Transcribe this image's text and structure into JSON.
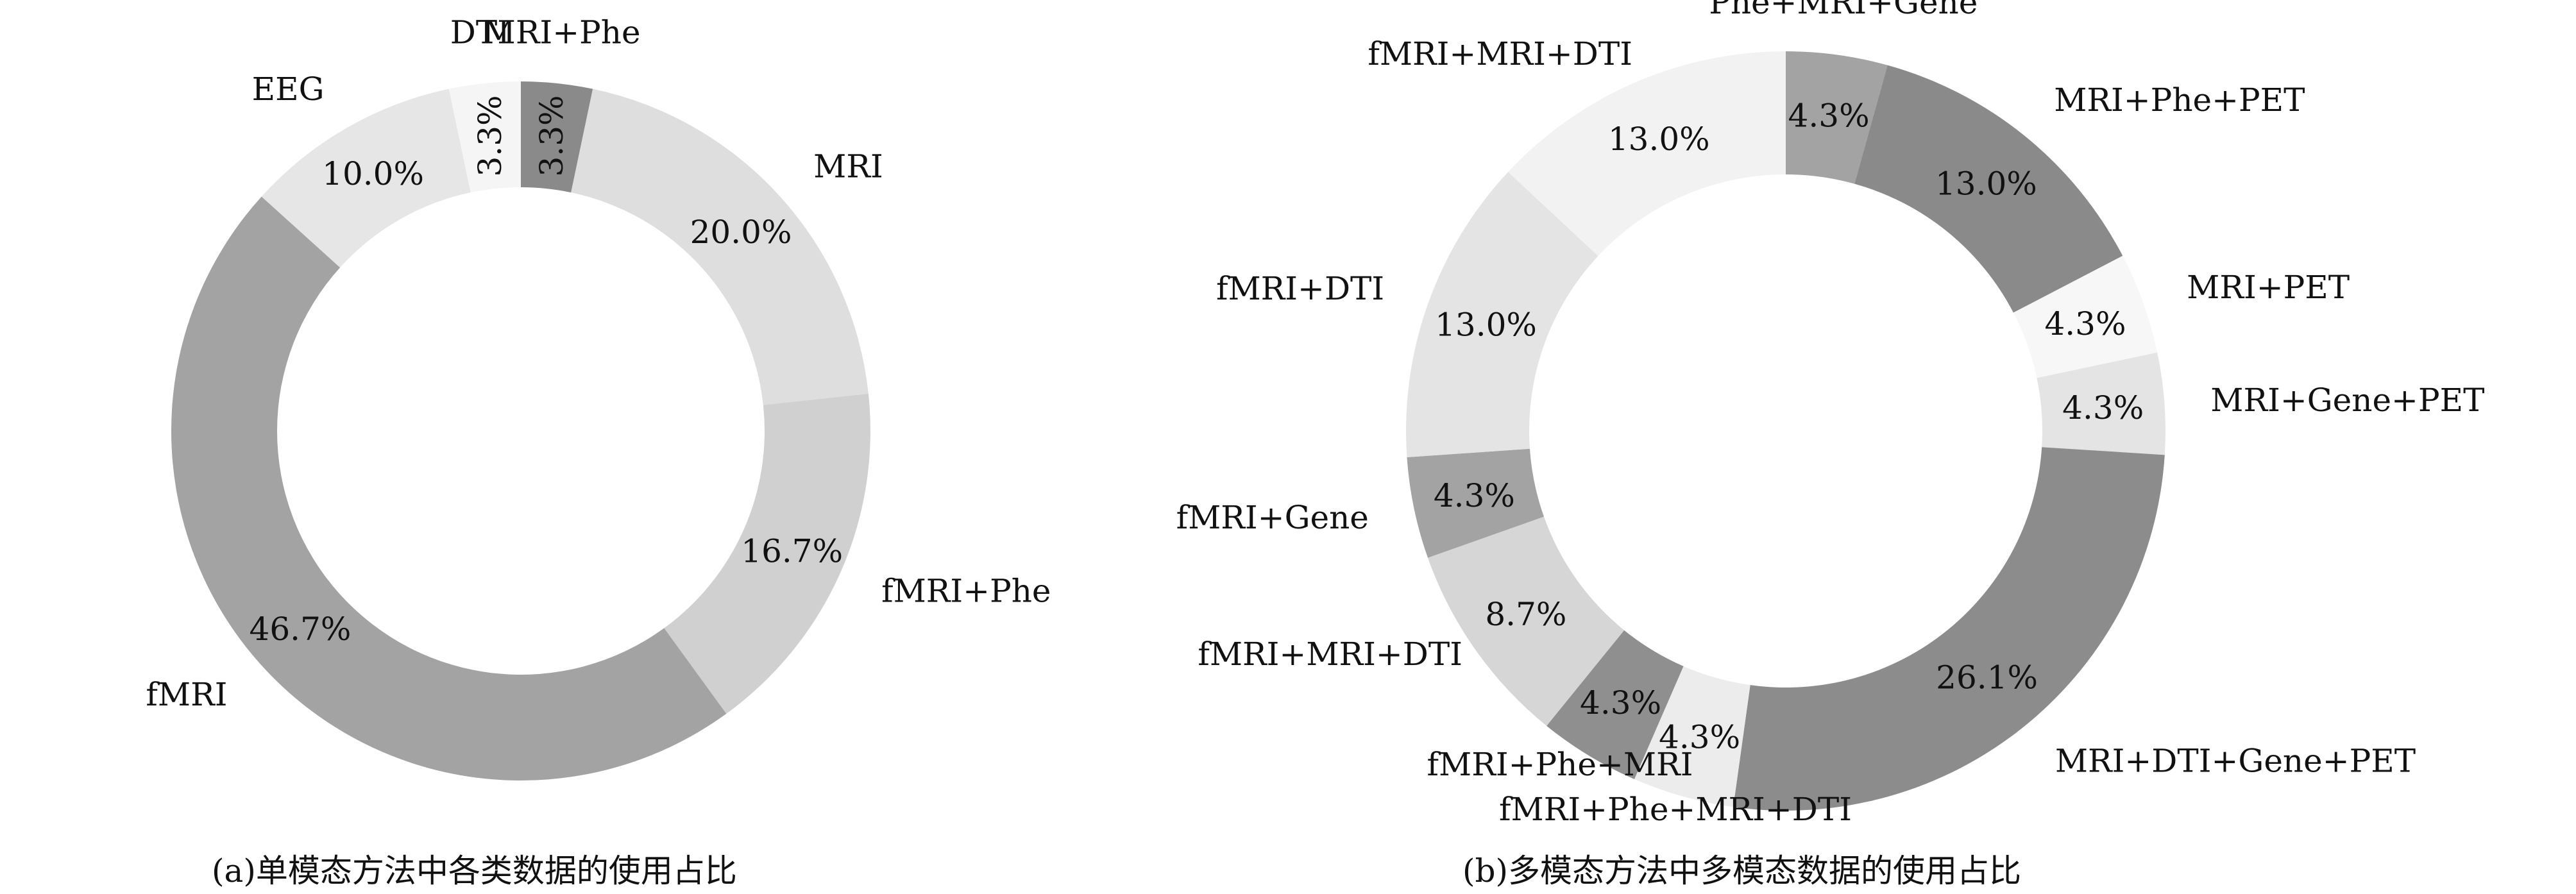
{
  "chart_data": [
    {
      "type": "pie",
      "caption": "(a)单模态方法中各类数据的使用占比",
      "slices": [
        {
          "label": "MRI+Phe",
          "value": 3.3,
          "pct": "3.3%",
          "color": "#8a8a8a"
        },
        {
          "label": "MRI",
          "value": 20.0,
          "pct": "20.0%",
          "color": "#dedede"
        },
        {
          "label": "fMRI+Phe",
          "value": 16.7,
          "pct": "16.7%",
          "color": "#d0d0d0"
        },
        {
          "label": "fMRI",
          "value": 46.7,
          "pct": "46.7%",
          "color": "#a3a3a3"
        },
        {
          "label": "EEG",
          "value": 10.0,
          "pct": "10.0%",
          "color": "#e6e6e6"
        },
        {
          "label": "DTI",
          "value": 3.3,
          "pct": "3.3%",
          "color": "#f5f5f5"
        }
      ]
    },
    {
      "type": "pie",
      "caption": "(b)多模态方法中多模态数据的使用占比",
      "slices": [
        {
          "label": "Phe+MRI+Gene",
          "value": 4.3,
          "pct": "4.3%",
          "color": "#a3a3a3"
        },
        {
          "label": "MRI+Phe+PET",
          "value": 13.0,
          "pct": "13.0%",
          "color": "#8a8a8a"
        },
        {
          "label": "MRI+PET",
          "value": 4.3,
          "pct": "4.3%",
          "color": "#f7f7f7"
        },
        {
          "label": "MRI+Gene+PET",
          "value": 4.3,
          "pct": "4.3%",
          "color": "#e4e4e4"
        },
        {
          "label": "MRI+DTI+Gene+PET",
          "value": 26.1,
          "pct": "26.1%",
          "color": "#8c8c8c"
        },
        {
          "label": "fMRI+Phe+MRI+DTI",
          "value": 4.3,
          "pct": "4.3%",
          "color": "#ececec"
        },
        {
          "label": "fMRI+Phe+MRI",
          "value": 4.3,
          "pct": "4.3%",
          "color": "#8f8f8f"
        },
        {
          "label": "fMRI+MRI+DTI",
          "value": 8.7,
          "pct": "8.7%",
          "color": "#d6d6d6"
        },
        {
          "label": "fMRI+Gene",
          "value": 4.3,
          "pct": "4.3%",
          "color": "#a3a3a3"
        },
        {
          "label": "fMRI+DTI",
          "value": 13.0,
          "pct": "13.0%",
          "color": "#e4e4e4"
        },
        {
          "label": "fMRI+MRI+DTI",
          "value": 13.0,
          "pct": "13.0%",
          "color": "#f2f2f2"
        }
      ]
    }
  ]
}
